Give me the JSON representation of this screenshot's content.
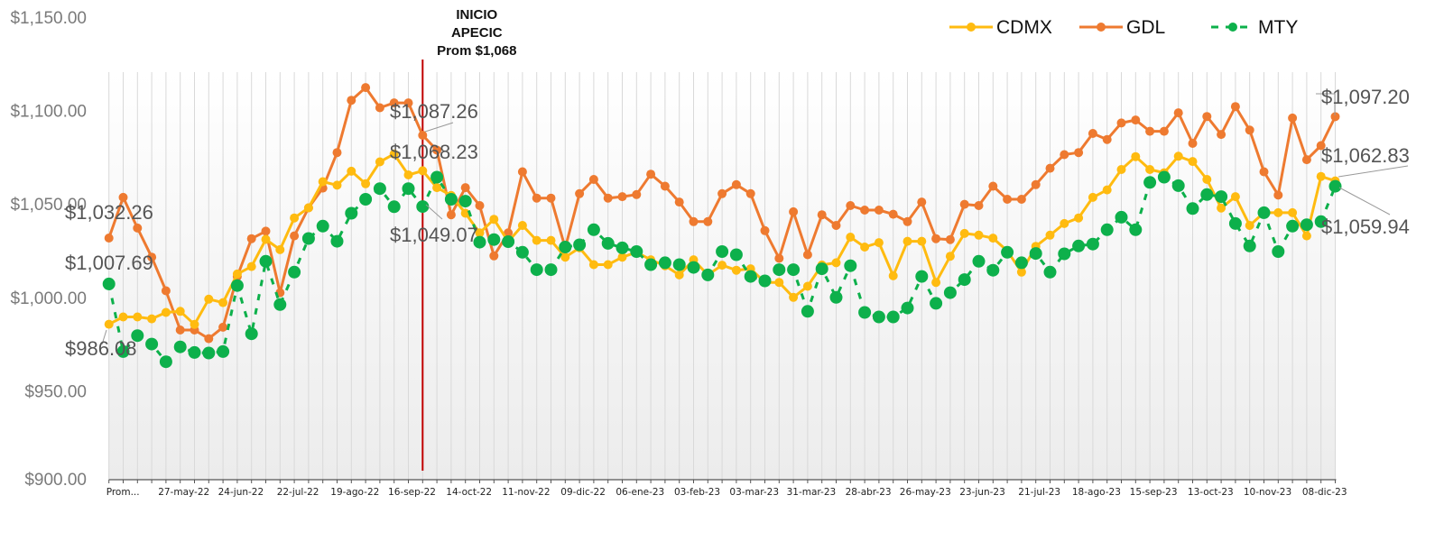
{
  "chart_data": {
    "type": "line",
    "title": "",
    "xlabel": "",
    "ylabel": "",
    "ylim": [
      900,
      1150
    ],
    "yticks": [
      900,
      950,
      1000,
      1050,
      1100,
      1150
    ],
    "ytick_labels": [
      "$900.00",
      "$950.00",
      "$1,000.00",
      "$1,050.00",
      "$1,100.00",
      "$1,150.00"
    ],
    "grid": "vertical",
    "legend_position": "top-right",
    "point_count": 87,
    "x_tick_labels": [
      {
        "index": 0,
        "label": "Prom..."
      },
      {
        "index": 5,
        "label": "27-may-22"
      },
      {
        "index": 9,
        "label": "24-jun-22"
      },
      {
        "index": 13,
        "label": "22-jul-22"
      },
      {
        "index": 17,
        "label": "19-ago-22"
      },
      {
        "index": 21,
        "label": "16-sep-22"
      },
      {
        "index": 25,
        "label": "14-oct-22"
      },
      {
        "index": 29,
        "label": "11-nov-22"
      },
      {
        "index": 33,
        "label": "09-dic-22"
      },
      {
        "index": 37,
        "label": "06-ene-23"
      },
      {
        "index": 41,
        "label": "03-feb-23"
      },
      {
        "index": 45,
        "label": "03-mar-23"
      },
      {
        "index": 49,
        "label": "31-mar-23"
      },
      {
        "index": 53,
        "label": "28-abr-23"
      },
      {
        "index": 57,
        "label": "26-may-23"
      },
      {
        "index": 61,
        "label": "23-jun-23"
      },
      {
        "index": 65,
        "label": "21-jul-23"
      },
      {
        "index": 69,
        "label": "18-ago-23"
      },
      {
        "index": 73,
        "label": "15-sep-23"
      },
      {
        "index": 77,
        "label": "13-oct-23"
      },
      {
        "index": 81,
        "label": "10-nov-23"
      },
      {
        "index": 85,
        "label": "08-dic-23"
      }
    ],
    "series": [
      {
        "name": "CDMX",
        "color": "#FFBB10",
        "style": "solid",
        "values": [
          986.08,
          990,
          990,
          989,
          992.4,
          993,
          986,
          999.5,
          997.7,
          1013,
          1017,
          1031.5,
          1026,
          1043,
          1048.4,
          1062.4,
          1060.5,
          1068,
          1061.3,
          1073,
          1077.2,
          1066,
          1068.23,
          1059.2,
          1055,
          1045.5,
          1035,
          1042.3,
          1030.3,
          1039,
          1031,
          1031,
          1022,
          1027,
          1018,
          1018,
          1022,
          1024.6,
          1020.6,
          1017.4,
          1012.5,
          1020.6,
          1012.5,
          1017.7,
          1015,
          1015.8,
          1008.5,
          1008.5,
          1000.5,
          1006.4,
          1017.8,
          1019,
          1032.7,
          1027.4,
          1029.8,
          1012,
          1030.5,
          1030.5,
          1008.5,
          1022.5,
          1034.7,
          1033.8,
          1032.2,
          1025.4,
          1014,
          1027.8,
          1033.8,
          1040,
          1043,
          1054,
          1058,
          1068.9,
          1075.8,
          1068.9,
          1067.2,
          1076,
          1073.2,
          1063.6,
          1048.3,
          1054.4,
          1039,
          1045.8,
          1045.8,
          1045.8,
          1033.4,
          1065.2,
          1062.83
        ]
      },
      {
        "name": "GDL",
        "color": "#EE7A30",
        "style": "solid",
        "values": [
          1032.26,
          1054,
          1037.6,
          1022,
          1004,
          983,
          983,
          978.4,
          984.5,
          1011.7,
          1031.9,
          1035.9,
          1003,
          1033.4,
          1048.4,
          1059,
          1078,
          1106,
          1112.8,
          1102,
          1104.6,
          1104.6,
          1087.26,
          1079.3,
          1044.7,
          1059.2,
          1049.6,
          1022.7,
          1035,
          1067.7,
          1053.6,
          1053.6,
          1027,
          1056,
          1063.6,
          1053.6,
          1054.4,
          1055.5,
          1066.4,
          1060,
          1051.5,
          1041,
          1041,
          1056,
          1060.8,
          1056,
          1036.2,
          1021.4,
          1046.3,
          1023.3,
          1044.7,
          1039,
          1049.6,
          1047.2,
          1047.2,
          1045,
          1041,
          1051.5,
          1031.9,
          1031.4,
          1050.3,
          1049.6,
          1060,
          1053,
          1053,
          1060.8,
          1069.6,
          1076.9,
          1078,
          1088.2,
          1085,
          1093.8,
          1095.4,
          1089.4,
          1089.4,
          1099.3,
          1082.9,
          1097.3,
          1087.7,
          1102.6,
          1090,
          1067.7,
          1055.2,
          1096.5,
          1074.2,
          1081.7,
          1097.2
        ]
      },
      {
        "name": "MTY",
        "color": "#0DB04B",
        "style": "dashed",
        "values": [
          1007.69,
          971.5,
          980,
          975.5,
          966,
          974,
          971,
          970.7,
          971.5,
          1006.8,
          981,
          1019.8,
          996.6,
          1014,
          1032,
          1038.6,
          1030.5,
          1045.5,
          1053,
          1058.7,
          1049,
          1058.7,
          1049.07,
          1064.8,
          1053,
          1052,
          1030,
          1031.4,
          1030.3,
          1024.6,
          1015.3,
          1015.3,
          1027.4,
          1028.6,
          1036.7,
          1029.4,
          1027,
          1025,
          1018,
          1019,
          1018,
          1016.5,
          1012.5,
          1025,
          1023.3,
          1011.7,
          1009.3,
          1015.3,
          1015.3,
          993,
          1015.8,
          1000.5,
          1017.4,
          992.4,
          990,
          990,
          994.8,
          1011.7,
          997.3,
          1003,
          1010,
          1019.8,
          1015,
          1024.6,
          1019,
          1024,
          1014,
          1023.8,
          1028,
          1029,
          1036.7,
          1043.4,
          1036.7,
          1062,
          1064.8,
          1060.3,
          1048,
          1055.5,
          1054.4,
          1040,
          1028,
          1045.8,
          1025,
          1038.6,
          1039.4,
          1041,
          1059.94
        ]
      }
    ],
    "data_labels": [
      {
        "series": "GDL",
        "index": 0,
        "text": "$1,032.26"
      },
      {
        "series": "MTY",
        "index": 0,
        "text": "$1,007.69"
      },
      {
        "series": "CDMX",
        "index": 0,
        "text": "$986.08"
      },
      {
        "series": "GDL",
        "index": 22,
        "text": "$1,087.26"
      },
      {
        "series": "CDMX",
        "index": 22,
        "text": "$1,068.23"
      },
      {
        "series": "MTY",
        "index": 22,
        "text": "$1,049.07"
      },
      {
        "series": "GDL",
        "index": 86,
        "text": "$1,097.20"
      },
      {
        "series": "CDMX",
        "index": 86,
        "text": "$1,062.83"
      },
      {
        "series": "MTY",
        "index": 86,
        "text": "$1,059.94"
      }
    ],
    "annotation": {
      "index": 22,
      "color": "#C00000",
      "lines": [
        "INICIO",
        "APECIC",
        "Prom $1,068"
      ]
    }
  }
}
